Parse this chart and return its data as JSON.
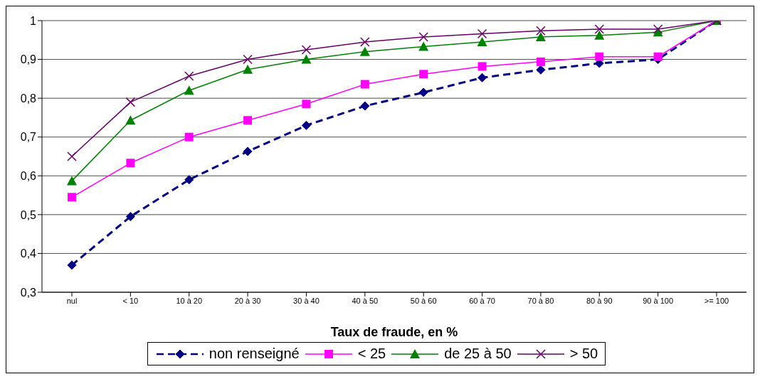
{
  "chart_data": {
    "type": "line",
    "xlabel": "Taux de fraude, en %",
    "categories": [
      "nul",
      "< 10",
      "10 à 20",
      "20 à 30",
      "30 à 40",
      "40 à 50",
      "50 à 60",
      "60 à 70",
      "70 à 80",
      "80 à 90",
      "90 à 100",
      ">= 100"
    ],
    "series": [
      {
        "name": "non renseigné",
        "color": "#000080",
        "marker": "diamond",
        "line_style": "dashed",
        "values": [
          0.37,
          0.495,
          0.59,
          0.663,
          0.73,
          0.78,
          0.815,
          0.853,
          0.873,
          0.89,
          0.9,
          1
        ]
      },
      {
        "name": "<  25",
        "color": "#ff00ff",
        "marker": "square",
        "line_style": "solid",
        "values": [
          0.545,
          0.633,
          0.7,
          0.743,
          0.785,
          0.836,
          0.862,
          0.882,
          0.894,
          0.907,
          0.907,
          1
        ]
      },
      {
        "name": "de 25 à 50",
        "color": "#008000",
        "marker": "triangle",
        "line_style": "solid",
        "values": [
          0.587,
          0.743,
          0.82,
          0.874,
          0.9,
          0.92,
          0.933,
          0.945,
          0.958,
          0.962,
          0.97,
          1
        ]
      },
      {
        "name": ">  50",
        "color": "#660066",
        "marker": "cross",
        "line_style": "solid",
        "values": [
          0.65,
          0.79,
          0.857,
          0.9,
          0.925,
          0.945,
          0.958,
          0.966,
          0.974,
          0.978,
          0.978,
          1
        ]
      }
    ],
    "ylim": [
      0.3,
      1
    ],
    "yticks": [
      {
        "value": 0.3,
        "label": "0,3"
      },
      {
        "value": 0.4,
        "label": "0,4"
      },
      {
        "value": 0.5,
        "label": "0,5"
      },
      {
        "value": 0.6,
        "label": "0,6"
      },
      {
        "value": 0.7,
        "label": "0,7"
      },
      {
        "value": 0.8,
        "label": "0,8"
      },
      {
        "value": 0.9,
        "label": "0,9"
      },
      {
        "value": 1,
        "label": "1"
      }
    ],
    "grid": "y",
    "legend": "bottom"
  }
}
